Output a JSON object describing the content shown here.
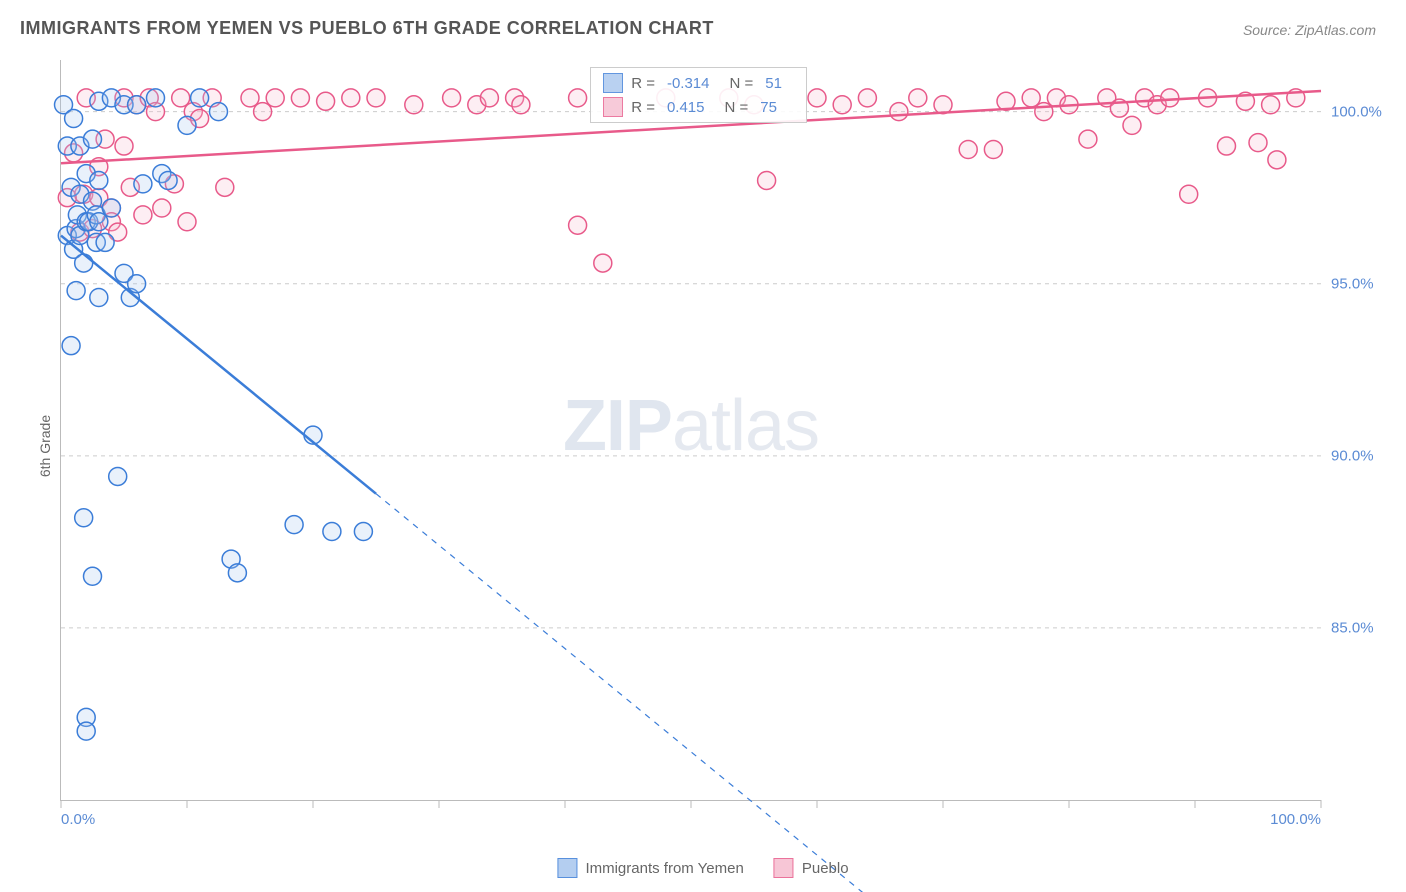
{
  "title": "IMMIGRANTS FROM YEMEN VS PUEBLO 6TH GRADE CORRELATION CHART",
  "source": "Source: ZipAtlas.com",
  "ylabel": "6th Grade",
  "watermark": {
    "bold": "ZIP",
    "rest": "atlas"
  },
  "chart": {
    "type": "scatter",
    "xlim": [
      0,
      100
    ],
    "ylim": [
      80,
      101.5
    ],
    "xticks": [
      0,
      10,
      20,
      30,
      40,
      50,
      60,
      70,
      80,
      90,
      100
    ],
    "xtick_labels_shown": {
      "0": "0.0%",
      "100": "100.0%"
    },
    "yticks": [
      85,
      90,
      95,
      100
    ],
    "ytick_labels": {
      "85": "85.0%",
      "90": "90.0%",
      "95": "95.0%",
      "100": "100.0%"
    },
    "grid_color": "#cccccc",
    "grid_dash": "4,4",
    "background": "#ffffff",
    "marker_radius": 9,
    "marker_stroke_width": 1.5,
    "marker_fill_opacity": 0.25,
    "line_width": 2.5,
    "series": [
      {
        "name": "Immigrants from Yemen",
        "color": "#3b7dd8",
        "fill": "#a8c6ee",
        "R": "-0.314",
        "N": "51",
        "trend": {
          "solid": [
            [
              0,
              96.4
            ],
            [
              25,
              88.9
            ]
          ],
          "dashed": [
            [
              25,
              88.9
            ],
            [
              66,
              76.6
            ]
          ]
        },
        "points": [
          [
            0.2,
            100.2
          ],
          [
            0.5,
            99.0
          ],
          [
            0.5,
            96.4
          ],
          [
            0.8,
            93.2
          ],
          [
            0.8,
            97.8
          ],
          [
            1.0,
            96.0
          ],
          [
            1.0,
            99.8
          ],
          [
            1.2,
            94.8
          ],
          [
            1.2,
            96.6
          ],
          [
            1.3,
            97.0
          ],
          [
            1.5,
            97.6
          ],
          [
            1.5,
            96.4
          ],
          [
            1.5,
            99.0
          ],
          [
            1.8,
            95.6
          ],
          [
            1.8,
            88.2
          ],
          [
            2.0,
            82.4
          ],
          [
            2.0,
            82.0
          ],
          [
            2.0,
            96.8
          ],
          [
            2.0,
            98.2
          ],
          [
            2.2,
            96.8
          ],
          [
            2.5,
            97.4
          ],
          [
            2.5,
            99.2
          ],
          [
            2.5,
            86.5
          ],
          [
            2.8,
            96.2
          ],
          [
            2.8,
            97.0
          ],
          [
            3.0,
            94.6
          ],
          [
            3.0,
            96.8
          ],
          [
            3.0,
            98.0
          ],
          [
            3.0,
            100.3
          ],
          [
            3.5,
            96.2
          ],
          [
            4.0,
            97.2
          ],
          [
            4.0,
            100.4
          ],
          [
            4.5,
            89.4
          ],
          [
            5.0,
            100.2
          ],
          [
            5.0,
            95.3
          ],
          [
            5.5,
            94.6
          ],
          [
            6.0,
            95.0
          ],
          [
            6.0,
            100.2
          ],
          [
            6.5,
            97.9
          ],
          [
            7.5,
            100.4
          ],
          [
            8.0,
            98.2
          ],
          [
            8.5,
            98.0
          ],
          [
            10.0,
            99.6
          ],
          [
            11.0,
            100.4
          ],
          [
            12.5,
            100.0
          ],
          [
            13.5,
            87.0
          ],
          [
            14.0,
            86.6
          ],
          [
            18.5,
            88.0
          ],
          [
            20.0,
            90.6
          ],
          [
            21.5,
            87.8
          ],
          [
            24.0,
            87.8
          ]
        ]
      },
      {
        "name": "Pueblo",
        "color": "#e85a8a",
        "fill": "#f6bdd0",
        "R": "0.415",
        "N": "75",
        "trend": {
          "solid": [
            [
              0,
              98.5
            ],
            [
              100,
              100.6
            ]
          ],
          "dashed": null
        },
        "points": [
          [
            0.5,
            97.5
          ],
          [
            1.0,
            98.8
          ],
          [
            1.5,
            96.5
          ],
          [
            1.8,
            97.6
          ],
          [
            2.0,
            100.4
          ],
          [
            2.5,
            96.6
          ],
          [
            3.0,
            98.4
          ],
          [
            3.0,
            97.5
          ],
          [
            3.5,
            99.2
          ],
          [
            4.0,
            97.2
          ],
          [
            4.0,
            96.8
          ],
          [
            4.5,
            96.5
          ],
          [
            5.0,
            99.0
          ],
          [
            5.0,
            100.4
          ],
          [
            5.5,
            97.8
          ],
          [
            6.0,
            100.2
          ],
          [
            6.5,
            97.0
          ],
          [
            7.0,
            100.4
          ],
          [
            7.5,
            100.0
          ],
          [
            8.0,
            97.2
          ],
          [
            9.0,
            97.9
          ],
          [
            9.5,
            100.4
          ],
          [
            10.0,
            96.8
          ],
          [
            10.5,
            100.0
          ],
          [
            11.0,
            99.8
          ],
          [
            12.0,
            100.4
          ],
          [
            13.0,
            97.8
          ],
          [
            15.0,
            100.4
          ],
          [
            16.0,
            100.0
          ],
          [
            17.0,
            100.4
          ],
          [
            19.0,
            100.4
          ],
          [
            21.0,
            100.3
          ],
          [
            23.0,
            100.4
          ],
          [
            25.0,
            100.4
          ],
          [
            28.0,
            100.2
          ],
          [
            31.0,
            100.4
          ],
          [
            33.0,
            100.2
          ],
          [
            34.0,
            100.4
          ],
          [
            36.0,
            100.4
          ],
          [
            36.5,
            100.2
          ],
          [
            41.0,
            100.4
          ],
          [
            41.0,
            96.7
          ],
          [
            43.0,
            95.6
          ],
          [
            48.0,
            100.4
          ],
          [
            53.0,
            100.4
          ],
          [
            55.0,
            100.2
          ],
          [
            56.0,
            98.0
          ],
          [
            60.0,
            100.4
          ],
          [
            62.0,
            100.2
          ],
          [
            64.0,
            100.4
          ],
          [
            66.5,
            100.0
          ],
          [
            68.0,
            100.4
          ],
          [
            70.0,
            100.2
          ],
          [
            72.0,
            98.9
          ],
          [
            74.0,
            98.9
          ],
          [
            75.0,
            100.3
          ],
          [
            77.0,
            100.4
          ],
          [
            78.0,
            100.0
          ],
          [
            79.0,
            100.4
          ],
          [
            80.0,
            100.2
          ],
          [
            81.5,
            99.2
          ],
          [
            83.0,
            100.4
          ],
          [
            84.0,
            100.1
          ],
          [
            85.0,
            99.6
          ],
          [
            86.0,
            100.4
          ],
          [
            87.0,
            100.2
          ],
          [
            88.0,
            100.4
          ],
          [
            89.5,
            97.6
          ],
          [
            91.0,
            100.4
          ],
          [
            92.5,
            99.0
          ],
          [
            94.0,
            100.3
          ],
          [
            95.0,
            99.1
          ],
          [
            96.0,
            100.2
          ],
          [
            96.5,
            98.6
          ],
          [
            98.0,
            100.4
          ]
        ]
      }
    ],
    "stats_box": {
      "left_pct": 42,
      "top_pct": 1
    },
    "legend": {
      "items": [
        {
          "label": "Immigrants from Yemen",
          "color": "#3b7dd8",
          "fill": "#a8c6ee"
        },
        {
          "label": "Pueblo",
          "color": "#e85a8a",
          "fill": "#f6bdd0"
        }
      ]
    }
  }
}
